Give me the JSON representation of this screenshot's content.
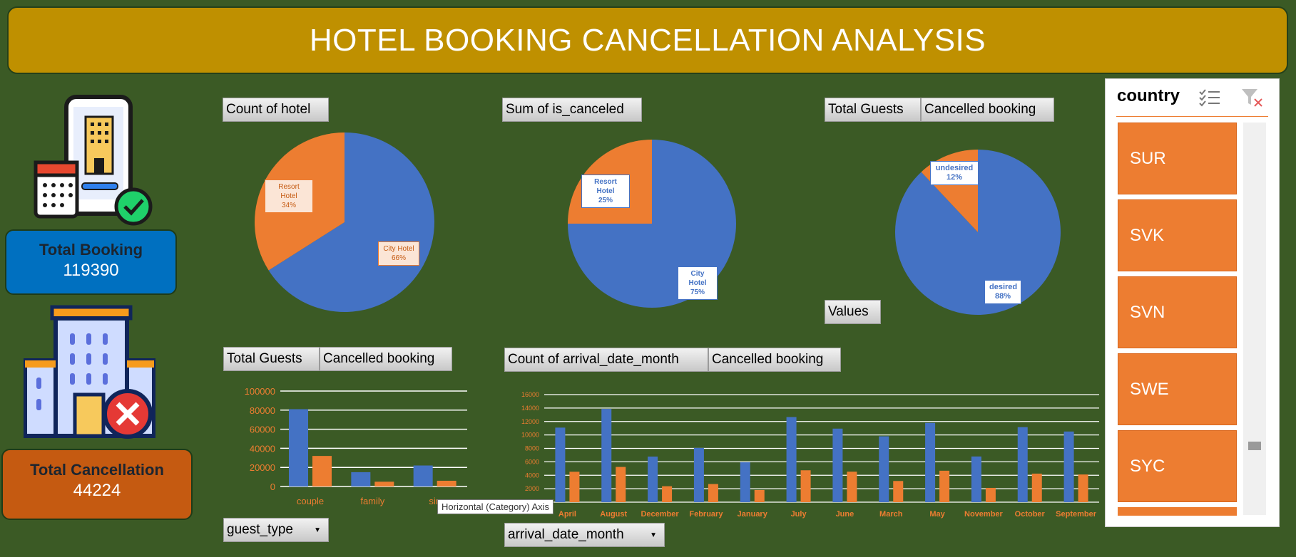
{
  "title": "HOTEL BOOKING CANCELLATION ANALYSIS",
  "kpis": {
    "total_booking": {
      "label": "Total Booking",
      "value": "119390"
    },
    "total_cancellation": {
      "label": "Total Cancellation",
      "value": "44224"
    }
  },
  "colors": {
    "blue": "#4472c4",
    "orange": "#ed7d31",
    "background": "#3b5a25",
    "title": "#bf9000"
  },
  "pie1_header": "Count of hotel",
  "pie2_header": "Sum of is_canceled",
  "pie3_header": {
    "a": "Total Guests",
    "b": "Cancelled booking",
    "values": "Values"
  },
  "bar1_header": {
    "a": "Total Guests",
    "b": "Cancelled booking",
    "filter": "guest_type"
  },
  "bar2_header": {
    "a": "Count of arrival_date_month",
    "b": "Cancelled booking",
    "filter": "arrival_date_month"
  },
  "pie_labels": {
    "p1_resort": "Resort Hotel",
    "p1_resort_pct": "34%",
    "p1_city": "City Hotel",
    "p1_city_pct": "66%",
    "p2_resort": "Resort Hotel",
    "p2_resort_pct": "25%",
    "p2_city": "City Hotel",
    "p2_city_pct": "75%",
    "p3_undesired": "undesired",
    "p3_undesired_pct": "12%",
    "p3_desired": "desired",
    "p3_desired_pct": "88%"
  },
  "tooltip": "Horizontal (Category) Axis",
  "slicer": {
    "title": "country",
    "items": [
      "SUR",
      "SVK",
      "SVN",
      "SWE",
      "SYC"
    ]
  },
  "chart_data": [
    {
      "type": "pie",
      "title": "Count of hotel",
      "categories": [
        "City Hotel",
        "Resort Hotel"
      ],
      "values": [
        66,
        34
      ]
    },
    {
      "type": "pie",
      "title": "Sum of is_canceled",
      "categories": [
        "City Hotel",
        "Resort Hotel"
      ],
      "values": [
        75,
        25
      ]
    },
    {
      "type": "pie",
      "title": "Cancelled booking",
      "categories": [
        "desired",
        "undesired"
      ],
      "values": [
        88,
        12
      ]
    },
    {
      "type": "bar",
      "title": "Total Guests / Cancelled booking",
      "categories": [
        "couple",
        "family",
        "single"
      ],
      "series": [
        {
          "name": "Total Guests",
          "values": [
            81000,
            15000,
            22000
          ]
        },
        {
          "name": "Cancelled booking",
          "values": [
            32000,
            5000,
            6000
          ]
        }
      ],
      "ylim": [
        0,
        100000
      ],
      "yticks": [
        "100000",
        "80000",
        "60000",
        "40000",
        "20000",
        "0"
      ],
      "xtick_labels": [
        "couple",
        "family",
        "sin"
      ]
    },
    {
      "type": "bar",
      "title": "Count of arrival_date_month / Cancelled booking",
      "categories": [
        "April",
        "August",
        "December",
        "February",
        "January",
        "July",
        "June",
        "March",
        "May",
        "November",
        "October",
        "September"
      ],
      "series": [
        {
          "name": "Count of arrival_date_month",
          "values": [
            11089,
            13877,
            6780,
            8068,
            5929,
            12661,
            10939,
            9794,
            11791,
            6794,
            11160,
            10508
          ]
        },
        {
          "name": "Cancelled booking",
          "values": [
            4524,
            5239,
            2371,
            2696,
            1807,
            4742,
            4535,
            3149,
            4677,
            2122,
            4246,
            4116
          ]
        }
      ],
      "ylim": [
        0,
        16000
      ],
      "yticks": [
        "16000",
        "14000",
        "12000",
        "10000",
        "8000",
        "6000",
        "4000",
        "2000",
        "0"
      ]
    }
  ]
}
